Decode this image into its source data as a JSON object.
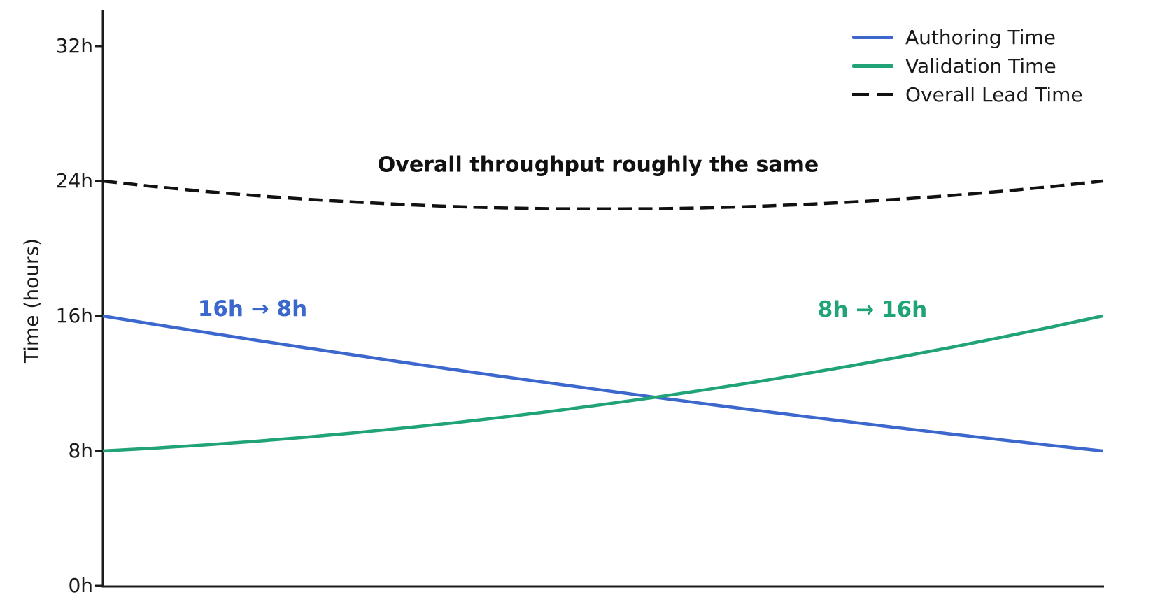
{
  "chart_data": {
    "type": "line",
    "title": "",
    "xlabel": "",
    "ylabel": "Time (hours)",
    "ylim": [
      0,
      34.2
    ],
    "xlim": [
      0,
      1
    ],
    "grid": false,
    "legend_position": "top-right",
    "axis_color": "#1c1c1c",
    "background_color": "#ffffff",
    "yticks": [
      {
        "value": 0,
        "label": "0h"
      },
      {
        "value": 8,
        "label": "8h"
      },
      {
        "value": 16,
        "label": "16h"
      },
      {
        "value": 24,
        "label": "24h"
      },
      {
        "value": 32,
        "label": "32h"
      }
    ],
    "x": [
      0,
      0.05,
      0.1,
      0.15,
      0.2,
      0.25,
      0.3,
      0.35,
      0.4,
      0.45,
      0.5,
      0.55,
      0.6,
      0.65,
      0.7,
      0.75,
      0.8,
      0.85,
      0.9,
      0.95,
      1
    ],
    "series": [
      {
        "name": "Authoring Time",
        "color": "#3c68cd",
        "style": "solid",
        "start_value_hours": 16,
        "end_value_hours": 8,
        "values": [
          16,
          15.52,
          15.05,
          14.59,
          14.14,
          13.7,
          13.26,
          12.83,
          12.41,
          12,
          11.6,
          11.2,
          10.81,
          10.43,
          10.06,
          9.7,
          9.34,
          8.99,
          8.65,
          8.32,
          8
        ]
      },
      {
        "name": "Validation Time",
        "color": "#20a377",
        "style": "solid",
        "start_value_hours": 8,
        "end_value_hours": 16,
        "values": [
          8,
          8.16,
          8.35,
          8.56,
          8.8,
          9.06,
          9.35,
          9.66,
          10,
          10.36,
          10.75,
          11.16,
          11.6,
          12.06,
          12.55,
          13.06,
          13.6,
          14.16,
          14.75,
          15.36,
          16
        ]
      },
      {
        "name": "Overall Lead Time",
        "color": "#111111",
        "style": "dashed",
        "start_value_hours": 24,
        "end_value_hours": 24,
        "values": [
          24,
          23.68,
          23.4,
          23.15,
          22.94,
          22.76,
          22.61,
          22.49,
          22.41,
          22.36,
          22.35,
          22.36,
          22.41,
          22.49,
          22.61,
          22.76,
          22.94,
          23.15,
          23.4,
          23.68,
          24
        ]
      }
    ],
    "annotations": [
      {
        "text": "16h → 8h",
        "color": "#3c68cd",
        "x": 0.15,
        "y": 16.4
      },
      {
        "text": "8h → 16h",
        "color": "#20a377",
        "x": 0.77,
        "y": 16.4
      },
      {
        "text": "Overall throughput roughly the same",
        "color": "#111111",
        "x": 0.5,
        "y": 25.0
      }
    ]
  }
}
